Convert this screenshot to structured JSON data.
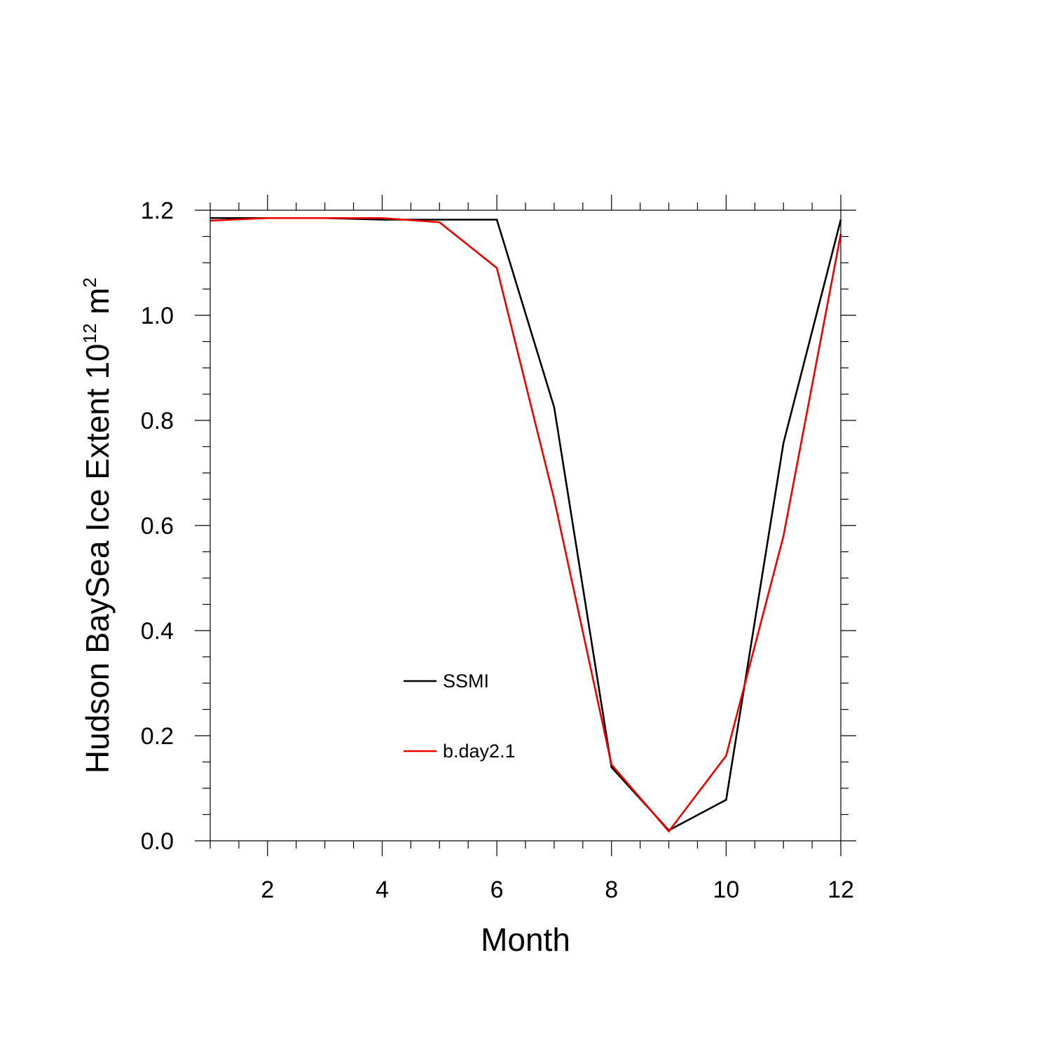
{
  "chart_data": {
    "type": "line",
    "xlabel": "Month",
    "ylabel": {
      "prefix": "Hudson BaySea Ice Extent 10",
      "exponent": "12",
      "unit_base": " m",
      "unit_exponent": "2"
    },
    "xlim": [
      1,
      12
    ],
    "ylim": [
      0,
      1.2
    ],
    "x_ticks": [
      2,
      4,
      6,
      8,
      10,
      12
    ],
    "x_tick_labels": [
      "2",
      "4",
      "6",
      "8",
      "10",
      "12"
    ],
    "y_ticks": [
      0,
      0.2,
      0.4,
      0.6,
      0.8,
      1.0,
      1.2
    ],
    "y_tick_labels": [
      "0.0",
      "0.2",
      "0.4",
      "0.6",
      "0.8",
      "1.0",
      "1.2"
    ],
    "grid": false,
    "legend_position": "lower-left-center",
    "x": [
      1,
      2,
      3,
      4,
      5,
      6,
      7,
      8,
      9,
      10,
      11,
      12
    ],
    "series": [
      {
        "name": "SSMI",
        "color": "#000000",
        "values": [
          1.185,
          1.185,
          1.185,
          1.182,
          1.182,
          1.182,
          0.825,
          0.14,
          0.02,
          0.078,
          0.757,
          1.182
        ]
      },
      {
        "name": "b.day2.1",
        "color": "#ee0000",
        "values": [
          1.18,
          1.185,
          1.185,
          1.185,
          1.177,
          1.09,
          0.65,
          0.145,
          0.018,
          0.162,
          0.58,
          1.155
        ]
      }
    ]
  }
}
